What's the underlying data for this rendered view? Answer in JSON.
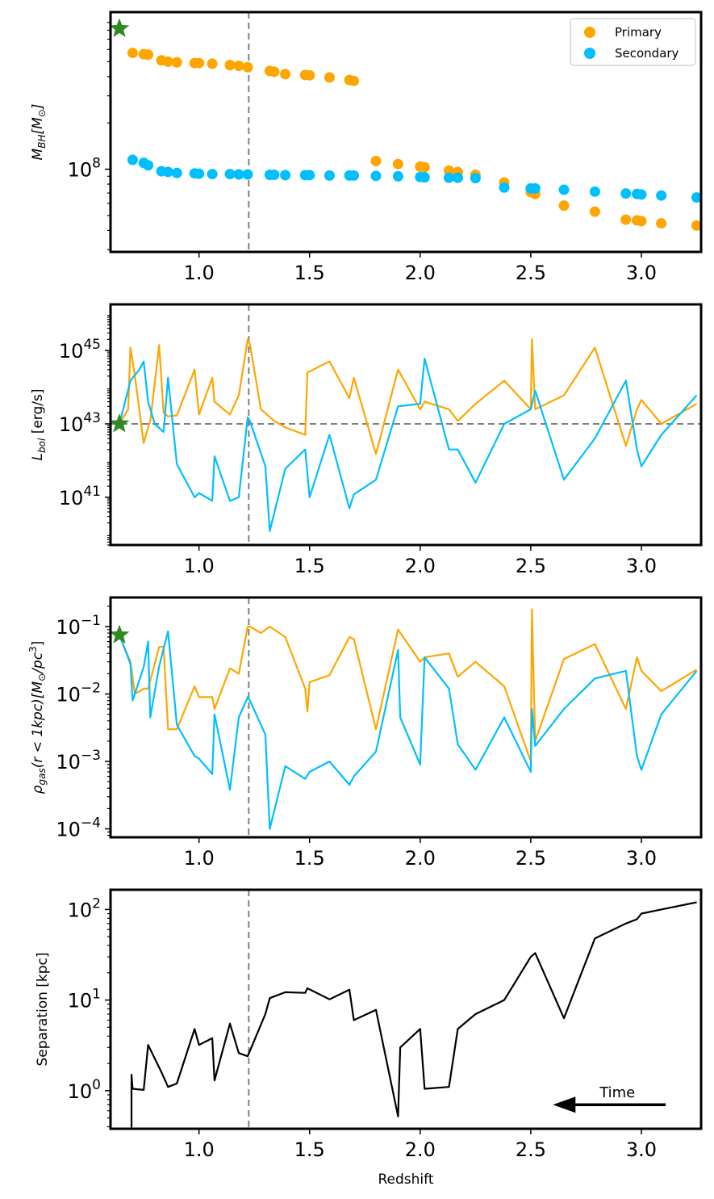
{
  "chart_data": [
    {
      "type": "scatter",
      "ylabel_main": "M",
      "ylabel_sub": "BH",
      "ylabel_unit": "[M",
      "ylabel_sun": "⊙",
      "ylabel_close": "]",
      "yscale": "log",
      "xlim": [
        0.6,
        3.27
      ],
      "ylim": [
        29000000.0,
        1050000000.0
      ],
      "xticks": [
        1.0,
        1.5,
        2.0,
        2.5,
        3.0
      ],
      "xtick_labels": [
        "1.0",
        "1.5",
        "2.0",
        "2.5",
        "3.0"
      ],
      "ytick_labels": [
        {
          "value": 100000000.0,
          "base": "10",
          "exp": "8"
        }
      ],
      "vline_x": 1.225,
      "star": {
        "x": 0.64,
        "y": 820000000.0
      },
      "legend": {
        "location": "top-right",
        "entries": [
          "Primary",
          "Secondary"
        ]
      },
      "series": [
        {
          "name": "Primary",
          "color": "#FFA500",
          "x": [
            0.7,
            0.75,
            0.77,
            0.83,
            0.86,
            0.9,
            0.98,
            1.0,
            1.06,
            1.14,
            1.18,
            1.22,
            1.32,
            1.34,
            1.39,
            1.48,
            1.5,
            1.59,
            1.68,
            1.7,
            1.8,
            1.9,
            2.0,
            2.02,
            2.13,
            2.17,
            2.25,
            2.38,
            2.5,
            2.52,
            2.65,
            2.79,
            2.93,
            2.98,
            3.0,
            3.09,
            3.25
          ],
          "y": [
            570000000.0,
            560000000.0,
            555000000.0,
            510000000.0,
            500000000.0,
            495000000.0,
            490000000.0,
            490000000.0,
            485000000.0,
            475000000.0,
            470000000.0,
            460000000.0,
            435000000.0,
            430000000.0,
            415000000.0,
            410000000.0,
            408000000.0,
            395000000.0,
            380000000.0,
            375000000.0,
            113000000.0,
            108000000.0,
            104000000.0,
            103000000.0,
            98000000.0,
            96000000.0,
            92000000.0,
            82000000.0,
            71000000.0,
            69000000.0,
            58000000.0,
            53000000.0,
            47000000.0,
            46500000.0,
            46000000.0,
            44500000.0,
            43000000.0
          ]
        },
        {
          "name": "Secondary",
          "color": "#00BFFF",
          "x": [
            0.7,
            0.75,
            0.77,
            0.83,
            0.86,
            0.9,
            0.98,
            1.0,
            1.06,
            1.14,
            1.18,
            1.22,
            1.32,
            1.34,
            1.39,
            1.48,
            1.5,
            1.59,
            1.68,
            1.7,
            1.8,
            1.9,
            2.0,
            2.02,
            2.13,
            2.17,
            2.25,
            2.38,
            2.5,
            2.52,
            2.65,
            2.79,
            2.93,
            2.98,
            3.0,
            3.09,
            3.25
          ],
          "y": [
            115000000.0,
            110000000.0,
            106000000.0,
            97000000.0,
            96000000.0,
            94500000.0,
            94000000.0,
            93500000.0,
            93000000.0,
            93000000.0,
            92500000.0,
            92500000.0,
            92000000.0,
            92000000.0,
            91500000.0,
            91500000.0,
            91500000.0,
            91000000.0,
            91000000.0,
            91000000.0,
            90500000.0,
            90000000.0,
            89000000.0,
            88500000.0,
            88000000.0,
            88000000.0,
            87500000.0,
            76000000.0,
            75000000.0,
            75000000.0,
            73500000.0,
            71500000.0,
            69500000.0,
            69000000.0,
            68500000.0,
            67500000.0,
            65500000.0
          ]
        }
      ]
    },
    {
      "type": "line",
      "ylabel_main": "L",
      "ylabel_sub": "bol",
      "ylabel_unit": " [erg/s]",
      "yscale": "log",
      "xlim": [
        0.6,
        3.27
      ],
      "ylim": [
        5e+39,
        1.8e+46
      ],
      "xticks": [
        1.0,
        1.5,
        2.0,
        2.5,
        3.0
      ],
      "xtick_labels": [
        "1.0",
        "1.5",
        "2.0",
        "2.5",
        "3.0"
      ],
      "ytick_labels": [
        {
          "value": 1e+41,
          "base": "10",
          "exp": "41"
        },
        {
          "value": 1e+43,
          "base": "10",
          "exp": "43"
        },
        {
          "value": 1e+45,
          "base": "10",
          "exp": "45"
        }
      ],
      "vline_x": 1.225,
      "hline_y": 1e+43,
      "star": {
        "x": 0.64,
        "y": 1e+43
      },
      "series": [
        {
          "name": "Primary",
          "color": "#FFA500",
          "x": [
            0.64,
            0.68,
            0.69,
            0.71,
            0.75,
            0.77,
            0.78,
            0.82,
            0.84,
            0.86,
            0.9,
            0.98,
            1.0,
            1.06,
            1.07,
            1.14,
            1.18,
            1.22,
            1.23,
            1.28,
            1.34,
            1.39,
            1.48,
            1.49,
            1.59,
            1.68,
            1.7,
            1.8,
            1.9,
            2.0,
            2.02,
            2.13,
            2.17,
            2.25,
            2.38,
            2.5,
            2.505,
            2.52,
            2.65,
            2.79,
            2.93,
            2.98,
            3.0,
            3.09,
            3.25
          ],
          "y": [
            1e+43,
            2.5e+43,
            1.2e+45,
            2e+44,
            3e+42,
            8e+42,
            1.2e+43,
            1.4e+45,
            2e+43,
            1.6e+43,
            1.7e+43,
            3e+44,
            1.8e+43,
            1.8e+44,
            4e+43,
            1.8e+43,
            6e+43,
            2e+45,
            1.5e+45,
            2.5e+43,
            1.2e+43,
            8e+42,
            5e+42,
            2.5e+44,
            5e+44,
            5e+43,
            1.8e+44,
            1.5e+42,
            3e+44,
            2.5e+43,
            4e+43,
            2.5e+43,
            1.2e+43,
            3.5e+43,
            1.5e+44,
            2.5e+43,
            2e+45,
            2.5e+43,
            6e+43,
            1.2e+45,
            2.5e+42,
            2.5e+43,
            4.5e+43,
            1e+43,
            3.5e+43
          ]
        },
        {
          "name": "Secondary",
          "color": "#00BFFF",
          "x": [
            0.64,
            0.69,
            0.73,
            0.75,
            0.77,
            0.8,
            0.84,
            0.86,
            0.9,
            0.98,
            1.0,
            1.06,
            1.07,
            1.14,
            1.18,
            1.22,
            1.23,
            1.3,
            1.32,
            1.39,
            1.48,
            1.5,
            1.59,
            1.68,
            1.7,
            1.8,
            1.9,
            2.0,
            2.02,
            2.13,
            2.17,
            2.25,
            2.38,
            2.5,
            2.52,
            2.65,
            2.79,
            2.93,
            2.98,
            3.0,
            3.09,
            3.25
          ],
          "y": [
            1e+43,
            1.5e+44,
            3e+44,
            5e+44,
            4e+43,
            1e+43,
            6e+42,
            1.8e+44,
            8e+41,
            1e+41,
            1.3e+41,
            8e+40,
            1.3e+42,
            8e+40,
            1e+41,
            1.5e+43,
            1.2e+43,
            7e+41,
            1.2e+40,
            6e+41,
            2e+42,
            1e+41,
            5e+42,
            5e+40,
            1.2e+41,
            3e+41,
            3e+43,
            3.5e+43,
            6e+44,
            2e+42,
            2e+42,
            2.5e+41,
            1e+43,
            2.5e+43,
            8e+43,
            3e+41,
            4e+42,
            1.5e+44,
            2e+42,
            7e+41,
            5e+42,
            6e+43
          ]
        }
      ]
    },
    {
      "type": "line",
      "ylabel_main": "ρ",
      "ylabel_sub": "gas",
      "ylabel_unit": "(r < 1kpc)[M",
      "ylabel_sun": "⊙",
      "ylabel_close": "/pc",
      "ylabel_sup": "3",
      "ylabel_end": "]",
      "yscale": "log",
      "xlim": [
        0.6,
        3.27
      ],
      "ylim": [
        7.5e-05,
        0.27
      ],
      "xticks": [
        1.0,
        1.5,
        2.0,
        2.5,
        3.0
      ],
      "xtick_labels": [
        "1.0",
        "1.5",
        "2.0",
        "2.5",
        "3.0"
      ],
      "ytick_labels": [
        {
          "value": 0.0001,
          "base": "10",
          "exp": "−4"
        },
        {
          "value": 0.001,
          "base": "10",
          "exp": "−3"
        },
        {
          "value": 0.01,
          "base": "10",
          "exp": "−2"
        },
        {
          "value": 0.1,
          "base": "10",
          "exp": "−1"
        }
      ],
      "vline_x": 1.225,
      "star": {
        "x": 0.64,
        "y": 0.075
      },
      "series": [
        {
          "name": "Primary",
          "color": "#FFA500",
          "x": [
            0.64,
            0.69,
            0.71,
            0.75,
            0.77,
            0.82,
            0.84,
            0.86,
            0.9,
            0.98,
            1.0,
            1.06,
            1.07,
            1.14,
            1.18,
            1.22,
            1.23,
            1.28,
            1.32,
            1.39,
            1.48,
            1.49,
            1.5,
            1.59,
            1.68,
            1.7,
            1.8,
            1.9,
            2.0,
            2.02,
            2.13,
            2.17,
            2.25,
            2.38,
            2.5,
            2.505,
            2.52,
            2.65,
            2.79,
            2.93,
            2.98,
            3.0,
            3.09,
            3.25
          ],
          "y": [
            0.075,
            0.03,
            0.01,
            0.012,
            0.012,
            0.05,
            0.05,
            0.003,
            0.003,
            0.013,
            0.009,
            0.009,
            0.006,
            0.024,
            0.02,
            0.1,
            0.1,
            0.08,
            0.1,
            0.07,
            0.012,
            0.0055,
            0.015,
            0.019,
            0.07,
            0.065,
            0.003,
            0.09,
            0.03,
            0.035,
            0.04,
            0.018,
            0.03,
            0.013,
            0.001,
            0.18,
            0.002,
            0.033,
            0.055,
            0.006,
            0.035,
            0.022,
            0.011,
            0.023
          ]
        },
        {
          "name": "Secondary",
          "color": "#00BFFF",
          "x": [
            0.64,
            0.69,
            0.7,
            0.75,
            0.77,
            0.78,
            0.82,
            0.86,
            0.9,
            0.98,
            1.0,
            1.06,
            1.07,
            1.14,
            1.18,
            1.22,
            1.23,
            1.3,
            1.32,
            1.39,
            1.48,
            1.5,
            1.59,
            1.68,
            1.7,
            1.8,
            1.9,
            1.91,
            2.0,
            2.02,
            2.13,
            2.17,
            2.25,
            2.38,
            2.5,
            2.505,
            2.52,
            2.65,
            2.79,
            2.93,
            2.98,
            3.0,
            3.09,
            3.25
          ],
          "y": [
            0.075,
            0.028,
            0.008,
            0.025,
            0.06,
            0.0045,
            0.026,
            0.085,
            0.0035,
            0.0012,
            0.0011,
            0.00065,
            0.005,
            0.00038,
            0.0045,
            0.009,
            0.008,
            0.0025,
            0.0001,
            0.00085,
            0.00055,
            0.0007,
            0.001,
            0.00045,
            0.0006,
            0.0014,
            0.045,
            0.0045,
            0.0009,
            0.035,
            0.012,
            0.0018,
            0.00075,
            0.0045,
            0.0007,
            0.006,
            0.0017,
            0.006,
            0.017,
            0.022,
            0.0012,
            0.00075,
            0.005,
            0.022
          ]
        }
      ]
    },
    {
      "type": "line",
      "xlabel": "Redshift",
      "ylabel": "Separation [kpc]",
      "yscale": "log",
      "xlim": [
        0.6,
        3.27
      ],
      "ylim": [
        0.38,
        165
      ],
      "xticks": [
        1.0,
        1.5,
        2.0,
        2.5,
        3.0
      ],
      "xtick_labels": [
        "1.0",
        "1.5",
        "2.0",
        "2.5",
        "3.0"
      ],
      "ytick_labels": [
        {
          "value": 1,
          "base": "10",
          "exp": "0"
        },
        {
          "value": 10,
          "base": "10",
          "exp": "1"
        },
        {
          "value": 100,
          "base": "10",
          "exp": "2"
        }
      ],
      "vline_x": 1.225,
      "annotation": {
        "text": "Time",
        "arrow_from_x": 3.11,
        "arrow_to_x": 2.6,
        "arrow_y": 0.7
      },
      "series": [
        {
          "name": "Separation",
          "color": "#000000",
          "x": [
            0.695,
            0.695,
            0.7,
            0.75,
            0.77,
            0.83,
            0.86,
            0.9,
            0.98,
            1.0,
            1.06,
            1.07,
            1.14,
            1.18,
            1.22,
            1.3,
            1.32,
            1.39,
            1.48,
            1.49,
            1.59,
            1.68,
            1.7,
            1.8,
            1.9,
            1.91,
            2.0,
            2.02,
            2.13,
            2.17,
            2.25,
            2.38,
            2.5,
            2.52,
            2.65,
            2.79,
            2.93,
            2.98,
            3.0,
            3.09,
            3.25
          ],
          "y": [
            0.38,
            1.5,
            1.05,
            1.02,
            3.2,
            1.6,
            1.1,
            1.2,
            4.8,
            3.2,
            3.8,
            1.3,
            5.5,
            2.6,
            2.4,
            7,
            10.5,
            12.2,
            12,
            13.5,
            10.2,
            13,
            6,
            7.8,
            0.52,
            3.0,
            4.8,
            1.05,
            1.1,
            4.8,
            7,
            10,
            30,
            33,
            6.3,
            48,
            70,
            78,
            90,
            100,
            120
          ]
        }
      ]
    }
  ]
}
